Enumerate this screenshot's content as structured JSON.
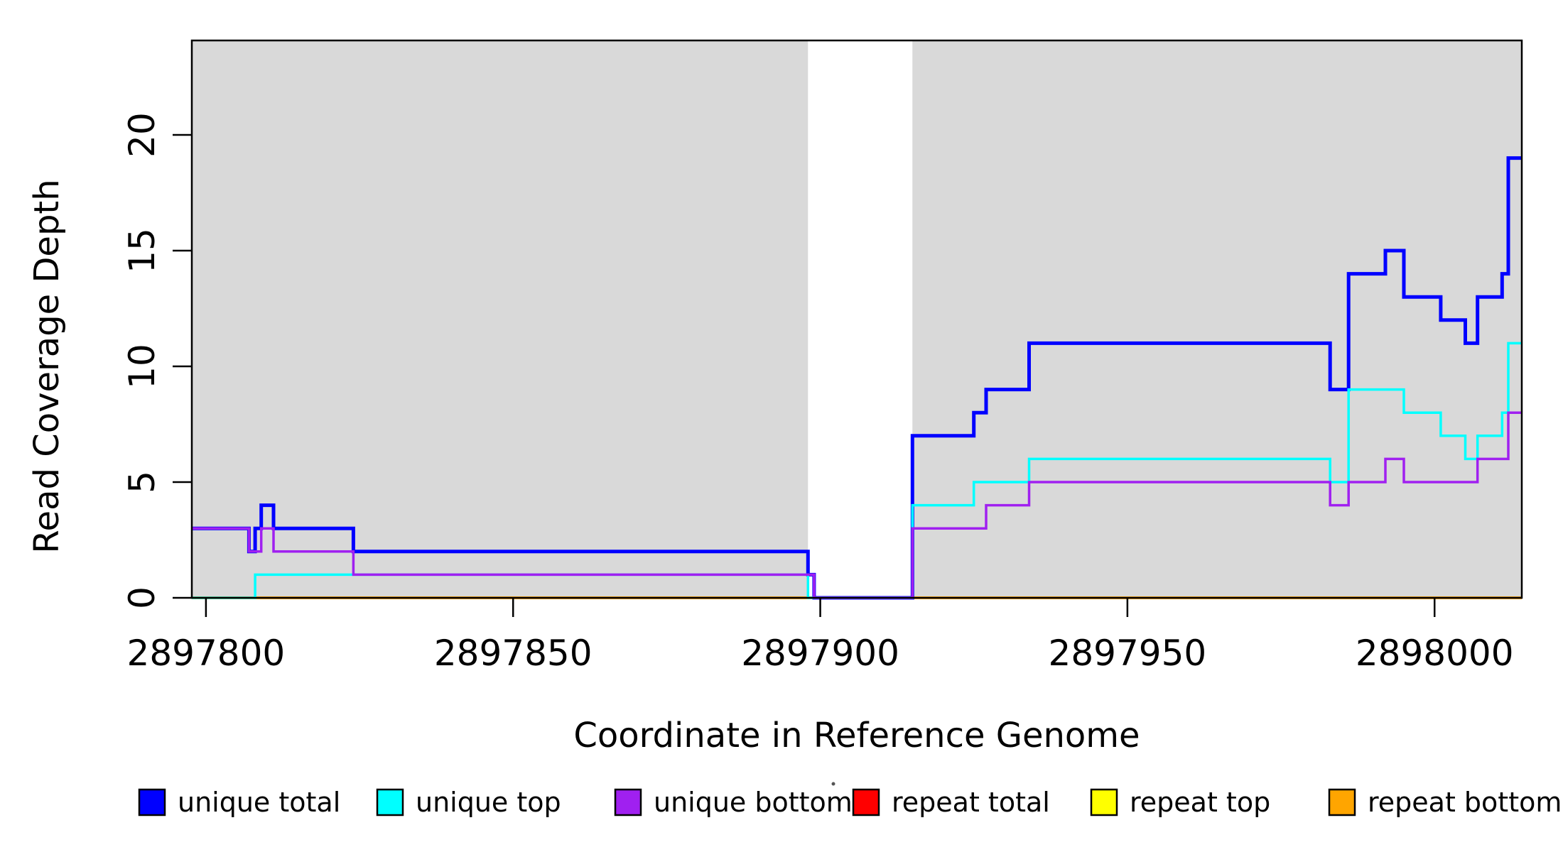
{
  "chart_data": {
    "type": "line",
    "subtype": "step-post",
    "title": "",
    "xlabel": "Coordinate in Reference Genome",
    "ylabel": "Read Coverage Depth",
    "xlim": [
      2897797.7,
      2898014.2
    ],
    "ylim": [
      0,
      24.08
    ],
    "grid": false,
    "legend_position": "bottom",
    "background_color": "#FFFFFF",
    "shaded_band_color": "#D9D9D9",
    "shaded_bands": [
      {
        "x0": 2897797.7,
        "x1": 2897898
      },
      {
        "x0": 2897915,
        "x1": 2898014.2
      }
    ],
    "x_ticks": [
      {
        "value": 2897800,
        "label": "2897800"
      },
      {
        "value": 2897850,
        "label": "2897850"
      },
      {
        "value": 2897900,
        "label": "2897900"
      },
      {
        "value": 2897950,
        "label": "2897950"
      },
      {
        "value": 2898000,
        "label": "2898000"
      }
    ],
    "y_ticks": [
      {
        "value": 0,
        "label": "0"
      },
      {
        "value": 5,
        "label": "5"
      },
      {
        "value": 10,
        "label": "10"
      },
      {
        "value": 15,
        "label": "15"
      },
      {
        "value": 20,
        "label": "20"
      }
    ],
    "series": [
      {
        "name": "unique total",
        "color": "#0000FF",
        "line_width": 5,
        "steps": [
          [
            2897797.7,
            3
          ],
          [
            2897807,
            2
          ],
          [
            2897808,
            3
          ],
          [
            2897809,
            4
          ],
          [
            2897811,
            3
          ],
          [
            2897824,
            2
          ],
          [
            2897898,
            1
          ],
          [
            2897899,
            0
          ],
          [
            2897915,
            7
          ],
          [
            2897925,
            8
          ],
          [
            2897927,
            9
          ],
          [
            2897934,
            11
          ],
          [
            2897983,
            9
          ],
          [
            2897986,
            14
          ],
          [
            2897992,
            15
          ],
          [
            2897995,
            13
          ],
          [
            2898001,
            12
          ],
          [
            2898005,
            11
          ],
          [
            2898007,
            13
          ],
          [
            2898011,
            14
          ],
          [
            2898012,
            19
          ]
        ]
      },
      {
        "name": "unique top",
        "color": "#00FFFF",
        "line_width": 3.5,
        "steps": [
          [
            2897797.7,
            0
          ],
          [
            2897808,
            1
          ],
          [
            2897898,
            0
          ],
          [
            2897915,
            4
          ],
          [
            2897925,
            5
          ],
          [
            2897934,
            6
          ],
          [
            2897983,
            5
          ],
          [
            2897986,
            9
          ],
          [
            2897995,
            8
          ],
          [
            2898001,
            7
          ],
          [
            2898005,
            6
          ],
          [
            2898007,
            7
          ],
          [
            2898011,
            8
          ],
          [
            2898012,
            11
          ]
        ]
      },
      {
        "name": "unique bottom",
        "color": "#A020F0",
        "line_width": 3.5,
        "steps": [
          [
            2897797.7,
            3
          ],
          [
            2897807,
            2
          ],
          [
            2897809,
            3
          ],
          [
            2897811,
            2
          ],
          [
            2897824,
            1
          ],
          [
            2897899,
            0
          ],
          [
            2897915,
            3
          ],
          [
            2897927,
            4
          ],
          [
            2897934,
            5
          ],
          [
            2897983,
            4
          ],
          [
            2897986,
            5
          ],
          [
            2897992,
            6
          ],
          [
            2897995,
            5
          ],
          [
            2898007,
            6
          ],
          [
            2898012,
            8
          ]
        ]
      },
      {
        "name": "repeat total",
        "color": "#FF0000",
        "line_width": 3.5,
        "steps": [
          [
            2897797.7,
            0
          ]
        ]
      },
      {
        "name": "repeat top",
        "color": "#FFFF00",
        "line_width": 3.5,
        "steps": [
          [
            2897797.7,
            0
          ]
        ]
      },
      {
        "name": "repeat bottom",
        "color": "#FFA500",
        "line_width": 4,
        "steps": [
          [
            2897797.7,
            0
          ]
        ]
      }
    ],
    "draw_order": [
      "repeat total",
      "repeat top",
      "repeat bottom",
      "unique total",
      "unique top",
      "unique bottom"
    ]
  }
}
